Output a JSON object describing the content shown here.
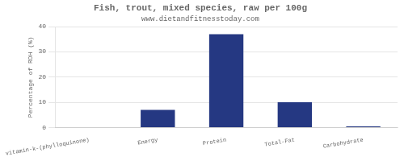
{
  "chart_data": {
    "type": "bar",
    "title": "Fish, trout, mixed species, raw per 100g",
    "subtitle": "www.dietandfitnesstoday.com",
    "categories": [
      "vitamin-k-(phylloquinone)",
      "Energy",
      "Protein",
      "Total-Fat",
      "Carbohydrate"
    ],
    "values": [
      0,
      7,
      37,
      10,
      0.5
    ],
    "color": "#253882",
    "ylabel": "Percentage of RDH (%)",
    "ylim": [
      0,
      40
    ],
    "yticks": [
      0,
      10,
      20,
      30,
      40
    ],
    "grid": true
  }
}
